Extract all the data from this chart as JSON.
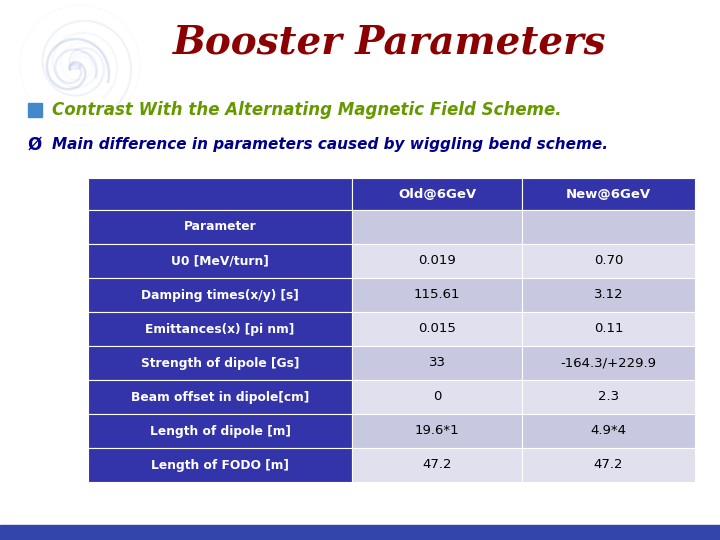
{
  "title": "Booster Parameters",
  "title_color": "#8B0000",
  "bullet1_square": "■",
  "bullet1_square_color": "#4477CC",
  "bullet1": "Contrast With the Alternating Magnetic Field Scheme.",
  "bullet1_color": "#669900",
  "bullet2_arrow": "Ø",
  "bullet2": "Main difference in parameters caused by wiggling bend scheme.",
  "bullet2_color": "#00008B",
  "bg_color": "#FFFFFF",
  "header_bg": "#3333AA",
  "header_text_color": "#FFFFFF",
  "col_header": [
    "Old@6GeV",
    "New@6GeV"
  ],
  "row_odd_bg": "#C8C8E0",
  "row_even_bg": "#E0E0EE",
  "row_data_text": "#000000",
  "rows": [
    [
      "Parameter",
      "",
      ""
    ],
    [
      "U0 [MeV/turn]",
      "0.019",
      "0.70"
    ],
    [
      "Damping times(x/y) [s]",
      "115.61",
      "3.12"
    ],
    [
      "Emittances(x) [pi nm]",
      "0.015",
      "0.11"
    ],
    [
      "Strength of dipole [Gs]",
      "33",
      "-164.3/+229.9"
    ],
    [
      "Beam offset in dipole[cm]",
      "0",
      "2.3"
    ],
    [
      "Length of dipole [m]",
      "19.6*1",
      "4.9*4"
    ],
    [
      "Length of FODO [m]",
      "47.2",
      "47.2"
    ]
  ]
}
